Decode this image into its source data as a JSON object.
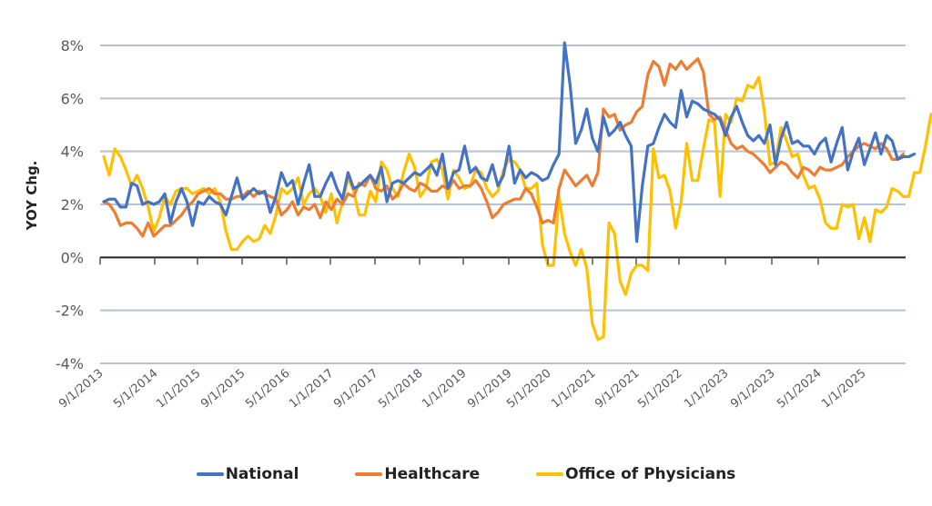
{
  "chart_data": {
    "type": "line",
    "title": "",
    "xlabel": "",
    "ylabel": "YOY Chg.",
    "ylim": [
      -4,
      8
    ],
    "y_ticks": [
      "8%",
      "6%",
      "4%",
      "2%",
      "0%",
      "-2%",
      "-4%"
    ],
    "y_tick_values": [
      8,
      6,
      4,
      2,
      0,
      -2,
      -4
    ],
    "grid": true,
    "legend_position": "bottom",
    "x_start": "9/1/2013",
    "x_end": "7/1/2025",
    "x_tick_labels": [
      "9/1/2013",
      "5/1/2014",
      "1/1/2015",
      "9/1/2015",
      "5/1/2016",
      "1/1/2017",
      "9/1/2017",
      "5/1/2018",
      "1/1/2019",
      "9/1/2019",
      "5/1/2020",
      "1/1/2021",
      "9/1/2021",
      "5/1/2022",
      "1/1/2023",
      "9/1/2023",
      "5/1/2024",
      "1/1/2025"
    ],
    "series": [
      {
        "name": "National",
        "color": "#4472C4",
        "values": [
          2.1,
          2.2,
          2.2,
          1.9,
          1.9,
          2.8,
          2.7,
          2.0,
          2.1,
          2.0,
          2.1,
          2.4,
          1.3,
          2.1,
          2.6,
          2.1,
          1.2,
          2.1,
          2.0,
          2.3,
          2.1,
          2.0,
          1.6,
          2.3,
          3.0,
          2.2,
          2.4,
          2.6,
          2.4,
          2.5,
          1.7,
          2.3,
          3.2,
          2.7,
          2.9,
          2.0,
          2.8,
          3.5,
          2.3,
          2.3,
          2.8,
          3.2,
          2.6,
          2.2,
          3.2,
          2.6,
          2.7,
          2.9,
          3.1,
          2.8,
          3.4,
          2.1,
          2.8,
          2.9,
          2.8,
          3.0,
          3.2,
          3.1,
          3.3,
          3.5,
          3.1,
          3.9,
          2.6,
          3.2,
          3.3,
          4.2,
          3.2,
          3.4,
          3.0,
          2.9,
          3.5,
          2.7,
          3.1,
          4.2,
          2.8,
          3.3,
          3.0,
          3.2,
          3.1,
          2.9,
          3.0,
          3.5,
          3.9,
          8.1,
          6.5,
          4.3,
          4.8,
          5.6,
          4.5,
          4.0,
          5.3,
          4.6,
          4.8,
          5.1,
          4.6,
          4.2,
          0.6,
          2.7,
          4.2,
          4.3,
          4.9,
          5.4,
          5.1,
          4.9,
          6.3,
          5.3,
          5.9,
          5.8,
          5.6,
          5.5,
          5.4,
          5.2,
          4.6,
          5.3,
          5.7,
          5.1,
          4.6,
          4.4,
          4.6,
          4.3,
          5.0,
          3.5,
          4.5,
          5.1,
          4.3,
          4.4,
          4.2,
          4.2,
          3.9,
          4.3,
          4.5,
          3.6,
          4.3,
          4.9,
          3.3,
          4.0,
          4.5,
          3.5,
          4.1,
          4.7,
          3.9,
          4.6,
          4.4,
          3.7,
          3.8,
          3.8,
          3.9
        ]
      },
      {
        "name": "Healthcare",
        "color": "#ED7D31",
        "values": [
          2.1,
          2.0,
          1.7,
          1.2,
          1.3,
          1.3,
          1.1,
          0.8,
          1.3,
          0.8,
          1.0,
          1.2,
          1.2,
          1.4,
          1.6,
          1.9,
          2.1,
          2.4,
          2.5,
          2.6,
          2.4,
          2.4,
          2.2,
          2.2,
          2.3,
          2.3,
          2.5,
          2.3,
          2.5,
          2.4,
          2.3,
          2.2,
          1.6,
          1.8,
          2.1,
          1.6,
          1.9,
          1.8,
          2.0,
          1.5,
          2.1,
          1.8,
          2.2,
          2.0,
          2.4,
          2.3,
          2.8,
          2.7,
          3.1,
          2.6,
          2.5,
          2.7,
          2.2,
          2.4,
          2.8,
          2.6,
          2.5,
          2.8,
          2.7,
          2.5,
          2.5,
          2.7,
          2.6,
          2.9,
          2.6,
          2.7,
          2.7,
          2.9,
          2.6,
          2.1,
          1.5,
          1.7,
          2.0,
          2.1,
          2.2,
          2.2,
          2.6,
          2.4,
          1.9,
          1.3,
          1.4,
          1.3,
          2.6,
          3.3,
          3.0,
          2.7,
          2.9,
          3.1,
          2.7,
          3.2,
          5.6,
          5.3,
          5.4,
          4.8,
          5.0,
          5.1,
          5.5,
          5.7,
          6.9,
          7.4,
          7.2,
          6.5,
          7.3,
          7.1,
          7.4,
          7.1,
          7.3,
          7.5,
          7.0,
          5.4,
          5.2,
          5.3,
          4.8,
          4.3,
          4.1,
          4.2,
          4.0,
          3.9,
          3.7,
          3.5,
          3.2,
          3.4,
          3.6,
          3.5,
          3.2,
          3.0,
          3.4,
          3.3,
          3.1,
          3.4,
          3.3,
          3.3,
          3.4,
          3.5,
          3.8,
          4.0,
          4.2,
          4.3,
          4.2,
          4.1,
          4.3,
          4.1,
          3.7,
          3.7,
          3.9
        ]
      },
      {
        "name": "Office of Physicians",
        "color": "#FFC000",
        "values": [
          3.8,
          3.1,
          4.1,
          3.8,
          3.3,
          2.7,
          3.1,
          2.6,
          1.9,
          1.0,
          1.5,
          2.3,
          2.0,
          2.5,
          2.6,
          2.6,
          2.4,
          2.5,
          2.6,
          2.4,
          2.6,
          2.1,
          1.0,
          0.3,
          0.3,
          0.6,
          0.8,
          0.6,
          0.7,
          1.2,
          0.9,
          1.6,
          2.6,
          2.4,
          2.6,
          3.0,
          2.0,
          2.4,
          2.6,
          2.3,
          1.7,
          2.4,
          1.3,
          2.1,
          3.0,
          2.5,
          1.6,
          1.6,
          2.5,
          2.1,
          3.6,
          3.3,
          2.6,
          2.3,
          3.2,
          3.9,
          3.4,
          2.3,
          2.6,
          3.6,
          3.7,
          3.3,
          2.2,
          3.3,
          3.0,
          2.6,
          2.7,
          3.3,
          3.2,
          2.6,
          2.3,
          2.5,
          3.3,
          3.7,
          3.6,
          3.3,
          2.6,
          2.6,
          2.8,
          0.5,
          -0.3,
          -0.3,
          2.3,
          0.9,
          0.2,
          -0.3,
          0.3,
          -0.4,
          -2.5,
          -3.1,
          -3.0,
          1.3,
          0.9,
          -0.9,
          -1.4,
          -0.6,
          -0.3,
          -0.3,
          -0.5,
          4.1,
          3.0,
          3.1,
          2.5,
          1.1,
          2.1,
          4.3,
          2.9,
          2.9,
          4.1,
          5.2,
          5.1,
          2.3,
          5.4,
          5.1,
          6.0,
          5.9,
          6.5,
          6.4,
          6.8,
          5.5,
          3.5,
          3.6,
          4.9,
          4.4,
          3.8,
          3.9,
          3.1,
          2.6,
          2.7,
          2.2,
          1.3,
          1.1,
          1.1,
          2.0,
          1.9,
          2.0,
          0.7,
          1.5,
          0.6,
          1.8,
          1.7,
          1.9,
          2.6,
          2.5,
          2.3,
          2.3,
          3.2,
          3.2,
          4.2,
          5.4,
          5.2,
          4.9,
          4.9,
          5.4,
          4.8,
          5.0,
          5.2
        ]
      }
    ]
  }
}
